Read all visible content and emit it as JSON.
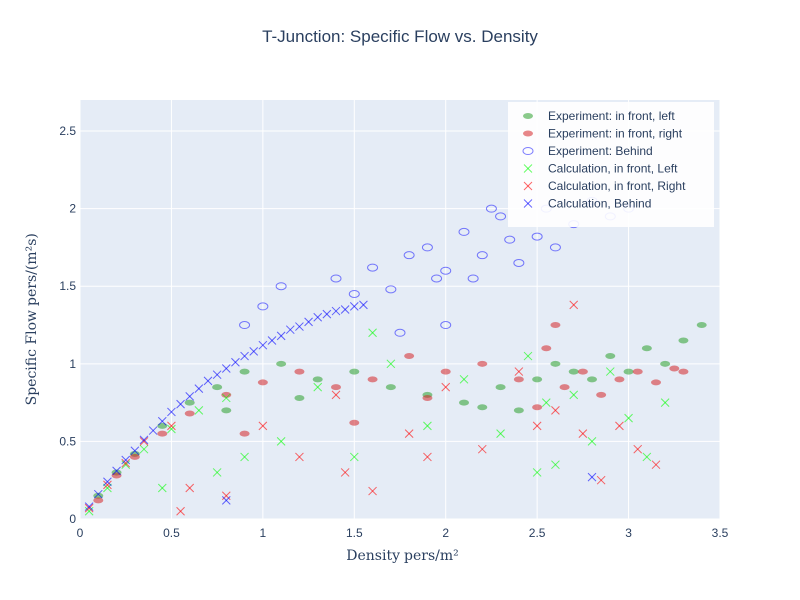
{
  "chart_data": {
    "type": "scatter",
    "title": "T-Junction: Specific Flow vs. Density",
    "xlabel": "Density",
    "xlabel_unit": "pers/m²",
    "ylabel": "Specific Flow",
    "ylabel_unit": "pers/(m²s)",
    "xlim": [
      0,
      3.5
    ],
    "ylim": [
      0,
      2.7
    ],
    "xticks": [
      0,
      0.5,
      1,
      1.5,
      2,
      2.5,
      3,
      3.5
    ],
    "xtick_labels": [
      "0",
      "0.5",
      "1",
      "1.5",
      "2",
      "2.5",
      "3",
      "3.5"
    ],
    "yticks": [
      0,
      0.5,
      1,
      1.5,
      2,
      2.5
    ],
    "ytick_labels": [
      "0",
      "0.5",
      "1",
      "1.5",
      "2",
      "2.5"
    ],
    "grid": true,
    "legend_position": "top-right",
    "series": [
      {
        "name": "Experiment: in front, left",
        "marker": "filled-circle",
        "color": "#2ca02c",
        "points": [
          [
            0.1,
            0.15
          ],
          [
            0.2,
            0.3
          ],
          [
            0.3,
            0.42
          ],
          [
            0.45,
            0.6
          ],
          [
            0.6,
            0.75
          ],
          [
            0.75,
            0.85
          ],
          [
            0.9,
            0.95
          ],
          [
            1.1,
            1.0
          ],
          [
            1.3,
            0.9
          ],
          [
            1.5,
            0.95
          ],
          [
            1.7,
            0.85
          ],
          [
            1.9,
            0.8
          ],
          [
            2.1,
            0.75
          ],
          [
            2.3,
            0.85
          ],
          [
            2.5,
            0.9
          ],
          [
            2.6,
            1.0
          ],
          [
            2.7,
            0.95
          ],
          [
            2.8,
            0.9
          ],
          [
            2.9,
            1.05
          ],
          [
            3.0,
            0.95
          ],
          [
            3.1,
            1.1
          ],
          [
            3.2,
            1.0
          ],
          [
            3.3,
            1.15
          ],
          [
            3.4,
            1.25
          ],
          [
            2.4,
            0.7
          ],
          [
            2.2,
            0.72
          ],
          [
            1.2,
            0.78
          ],
          [
            0.8,
            0.7
          ]
        ]
      },
      {
        "name": "Experiment: in front, right",
        "marker": "filled-circle",
        "color": "#d62728",
        "points": [
          [
            0.1,
            0.12
          ],
          [
            0.2,
            0.28
          ],
          [
            0.3,
            0.4
          ],
          [
            0.45,
            0.55
          ],
          [
            0.6,
            0.68
          ],
          [
            0.8,
            0.8
          ],
          [
            1.0,
            0.88
          ],
          [
            1.2,
            0.95
          ],
          [
            1.4,
            0.85
          ],
          [
            1.6,
            0.9
          ],
          [
            1.8,
            1.05
          ],
          [
            2.0,
            0.95
          ],
          [
            2.2,
            1.0
          ],
          [
            2.4,
            0.9
          ],
          [
            2.55,
            1.1
          ],
          [
            2.65,
            0.85
          ],
          [
            2.75,
            0.95
          ],
          [
            2.85,
            0.8
          ],
          [
            2.95,
            0.9
          ],
          [
            3.05,
            0.95
          ],
          [
            3.15,
            0.88
          ],
          [
            3.25,
            0.97
          ],
          [
            3.3,
            0.95
          ],
          [
            2.6,
            1.25
          ],
          [
            1.5,
            0.62
          ],
          [
            0.9,
            0.55
          ],
          [
            1.9,
            0.78
          ],
          [
            2.5,
            0.72
          ]
        ]
      },
      {
        "name": "Experiment: Behind",
        "marker": "open-circle",
        "color": "#0000ff",
        "points": [
          [
            0.9,
            1.25
          ],
          [
            1.0,
            1.37
          ],
          [
            1.1,
            1.5
          ],
          [
            1.4,
            1.55
          ],
          [
            1.6,
            1.62
          ],
          [
            1.7,
            1.48
          ],
          [
            1.8,
            1.7
          ],
          [
            1.9,
            1.75
          ],
          [
            2.0,
            1.6
          ],
          [
            2.1,
            1.85
          ],
          [
            2.2,
            1.7
          ],
          [
            2.3,
            1.95
          ],
          [
            2.35,
            1.8
          ],
          [
            2.4,
            1.65
          ],
          [
            2.5,
            1.82
          ],
          [
            2.55,
            2.0
          ],
          [
            2.6,
            1.75
          ],
          [
            2.7,
            1.9
          ],
          [
            2.8,
            2.05
          ],
          [
            2.9,
            1.95
          ],
          [
            3.0,
            2.0
          ],
          [
            1.95,
            1.55
          ],
          [
            2.15,
            1.55
          ],
          [
            1.75,
            1.2
          ],
          [
            2.0,
            1.25
          ],
          [
            2.25,
            2.0
          ],
          [
            1.5,
            1.45
          ]
        ]
      },
      {
        "name": "Calculation, in front, Left",
        "marker": "x",
        "color": "#00ff00",
        "points": [
          [
            0.05,
            0.05
          ],
          [
            0.15,
            0.2
          ],
          [
            0.25,
            0.35
          ],
          [
            0.35,
            0.45
          ],
          [
            0.5,
            0.58
          ],
          [
            0.65,
            0.7
          ],
          [
            0.8,
            0.78
          ],
          [
            0.9,
            0.4
          ],
          [
            1.1,
            0.5
          ],
          [
            1.3,
            0.85
          ],
          [
            1.5,
            0.4
          ],
          [
            1.7,
            1.0
          ],
          [
            1.9,
            0.6
          ],
          [
            2.1,
            0.9
          ],
          [
            2.3,
            0.55
          ],
          [
            2.45,
            1.05
          ],
          [
            2.55,
            0.75
          ],
          [
            2.6,
            0.35
          ],
          [
            2.7,
            0.8
          ],
          [
            2.8,
            0.5
          ],
          [
            2.9,
            0.95
          ],
          [
            3.0,
            0.65
          ],
          [
            3.1,
            0.4
          ],
          [
            3.2,
            0.75
          ],
          [
            0.45,
            0.2
          ],
          [
            0.75,
            0.3
          ],
          [
            2.5,
            0.3
          ],
          [
            1.6,
            1.2
          ]
        ]
      },
      {
        "name": "Calculation, in front, Right",
        "marker": "x",
        "color": "#ff0000",
        "points": [
          [
            0.05,
            0.07
          ],
          [
            0.15,
            0.22
          ],
          [
            0.25,
            0.36
          ],
          [
            0.35,
            0.5
          ],
          [
            0.5,
            0.6
          ],
          [
            0.6,
            0.2
          ],
          [
            0.8,
            0.15
          ],
          [
            1.0,
            0.6
          ],
          [
            1.2,
            0.4
          ],
          [
            1.4,
            0.8
          ],
          [
            1.6,
            0.18
          ],
          [
            1.8,
            0.55
          ],
          [
            2.0,
            0.85
          ],
          [
            2.2,
            0.45
          ],
          [
            2.4,
            0.95
          ],
          [
            2.6,
            0.7
          ],
          [
            2.7,
            1.38
          ],
          [
            2.75,
            0.55
          ],
          [
            2.85,
            0.25
          ],
          [
            2.95,
            0.6
          ],
          [
            3.05,
            0.45
          ],
          [
            3.15,
            0.35
          ],
          [
            2.5,
            0.6
          ],
          [
            1.45,
            0.3
          ],
          [
            0.55,
            0.05
          ],
          [
            1.9,
            0.4
          ]
        ]
      },
      {
        "name": "Calculation, Behind",
        "marker": "x",
        "color": "#0000ff",
        "points": [
          [
            0.05,
            0.08
          ],
          [
            0.1,
            0.16
          ],
          [
            0.15,
            0.24
          ],
          [
            0.2,
            0.31
          ],
          [
            0.25,
            0.38
          ],
          [
            0.3,
            0.44
          ],
          [
            0.35,
            0.51
          ],
          [
            0.4,
            0.57
          ],
          [
            0.45,
            0.63
          ],
          [
            0.5,
            0.69
          ],
          [
            0.55,
            0.74
          ],
          [
            0.6,
            0.79
          ],
          [
            0.65,
            0.84
          ],
          [
            0.7,
            0.89
          ],
          [
            0.75,
            0.93
          ],
          [
            0.8,
            0.97
          ],
          [
            0.85,
            1.01
          ],
          [
            0.9,
            1.05
          ],
          [
            0.95,
            1.08
          ],
          [
            1.0,
            1.12
          ],
          [
            1.05,
            1.15
          ],
          [
            1.1,
            1.18
          ],
          [
            1.15,
            1.22
          ],
          [
            1.2,
            1.24
          ],
          [
            1.25,
            1.27
          ],
          [
            1.3,
            1.3
          ],
          [
            1.35,
            1.32
          ],
          [
            1.4,
            1.34
          ],
          [
            1.45,
            1.35
          ],
          [
            1.5,
            1.37
          ],
          [
            1.55,
            1.38
          ],
          [
            2.8,
            0.27
          ],
          [
            0.8,
            0.12
          ]
        ]
      }
    ]
  }
}
